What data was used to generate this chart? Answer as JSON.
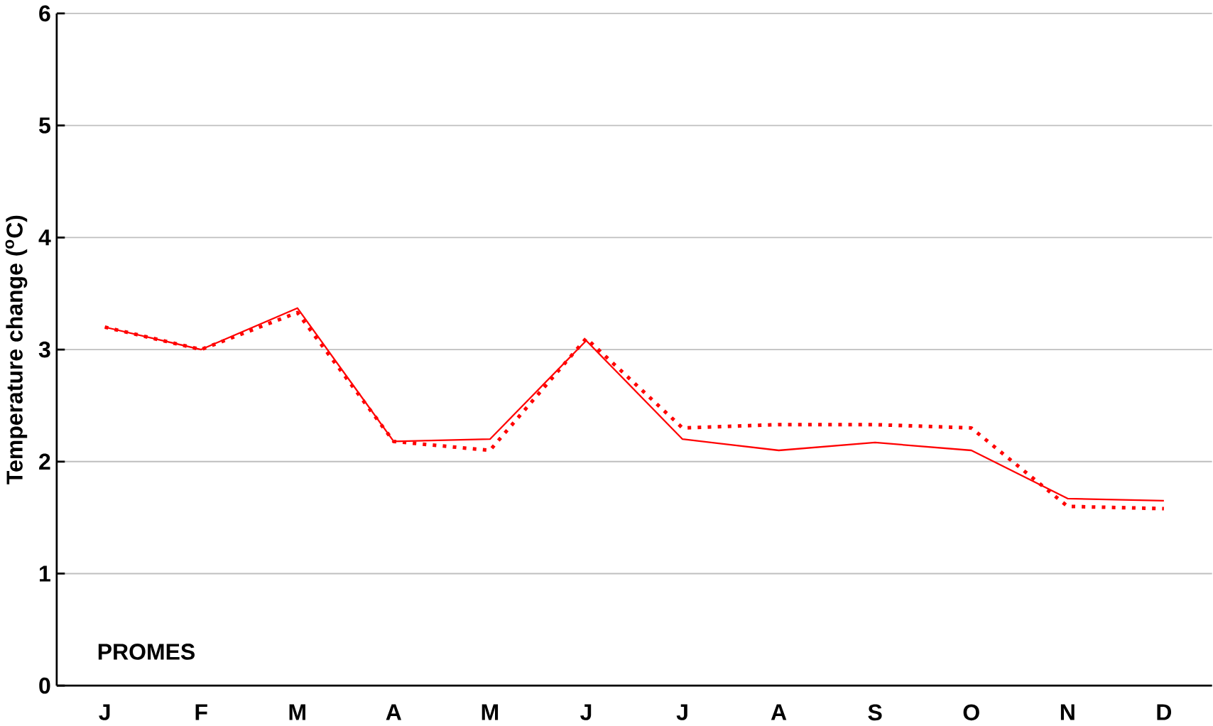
{
  "chart_data": {
    "type": "line",
    "ylabel": "Temperature change ($^{o}$C)",
    "categories": [
      "J",
      "F",
      "M",
      "A",
      "M",
      "J",
      "J",
      "A",
      "S",
      "O",
      "N",
      "D"
    ],
    "series": [
      {
        "color": "#ff0000",
        "line_style": "solid",
        "values": [
          3.2,
          3.0,
          3.37,
          2.18,
          2.2,
          3.08,
          2.2,
          2.1,
          2.17,
          2.1,
          1.67,
          1.65
        ]
      },
      {
        "color": "#ff0000",
        "line_style": "dotted",
        "values": [
          3.2,
          3.0,
          3.33,
          2.18,
          2.1,
          3.1,
          2.3,
          2.33,
          2.33,
          2.3,
          1.6,
          1.58
        ]
      }
    ],
    "ylim": [
      0,
      6
    ],
    "yticks": [
      0,
      1,
      2,
      3,
      4,
      5,
      6
    ],
    "grid": "y",
    "marker": "none",
    "annotations": [
      "PROMES"
    ]
  }
}
